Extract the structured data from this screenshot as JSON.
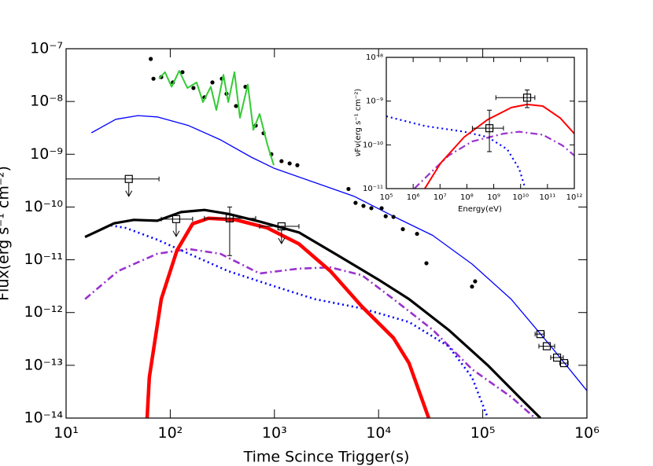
{
  "chart_data": [
    {
      "type": "line",
      "xlabel": "Time Scince Trigger(s)",
      "ylabel": "Flux(erg s⁻¹ cm⁻²)",
      "log_x": true,
      "log_y": true,
      "xlim": [
        10,
        1000000
      ],
      "ylim": [
        1e-14,
        1e-07
      ],
      "xticks": [
        {
          "value": 10,
          "label": "10¹"
        },
        {
          "value": 100,
          "label": "10²"
        },
        {
          "value": 1000,
          "label": "10³"
        },
        {
          "value": 10000,
          "label": "10⁴"
        },
        {
          "value": 100000,
          "label": "10⁵"
        },
        {
          "value": 1000000,
          "label": "10⁶"
        }
      ],
      "yticks": [
        {
          "value": 1e-14,
          "label": "10⁻¹⁴"
        },
        {
          "value": 1e-13,
          "label": "10⁻¹³"
        },
        {
          "value": 1e-12,
          "label": "10⁻¹²"
        },
        {
          "value": 1e-11,
          "label": "10⁻¹¹"
        },
        {
          "value": 1e-10,
          "label": "10⁻¹⁰"
        },
        {
          "value": 1e-09,
          "label": "10⁻⁹"
        },
        {
          "value": 1e-08,
          "label": "10⁻⁸"
        },
        {
          "value": 1e-07,
          "label": "10⁻⁷"
        }
      ],
      "series": [
        {
          "kind": "line",
          "style": "solid",
          "width": 1.3,
          "color": "#0000ff",
          "x": [
            17.5,
            30,
            49,
            75,
            150,
            300,
            600,
            1000,
            5800,
            13800,
            33000,
            79000,
            187000,
            450000,
            1000000
          ],
          "values": [
            2.55e-09,
            4.6e-09,
            5.4e-09,
            5.1e-09,
            3.5e-09,
            1.9e-09,
            8.8e-10,
            5.4e-10,
            1.6e-10,
            6.7e-11,
            2.9e-11,
            8.3e-12,
            1.8e-12,
            2.3e-13,
            3.3e-14
          ]
        },
        {
          "kind": "line",
          "style": "dashdot",
          "width": 2.6,
          "color": "#9933cc",
          "x": [
            15.2,
            31.5,
            75,
            151,
            302,
            721,
            1720,
            3450,
            6920,
            13900,
            33100,
            78900,
            188000,
            318000
          ],
          "values": [
            1.8e-12,
            6.1e-12,
            1.3e-11,
            1.6e-11,
            1.3e-11,
            5.5e-12,
            6.8e-12,
            7.2e-12,
            5.1e-12,
            1.8e-12,
            4.7e-13,
            8.4e-14,
            2.5e-14,
            1e-14
          ]
        },
        {
          "kind": "line",
          "style": "dotted",
          "width": 2.6,
          "color": "#0000ff",
          "x": [
            15.2,
            26.5,
            37.5,
            75,
            151,
            360,
            1020,
            2440,
            6920,
            19600,
            46900,
            78900,
            112000
          ],
          "values": [
            2.7e-11,
            4.5e-11,
            4e-11,
            2.4e-11,
            1.3e-11,
            6.1e-12,
            3.1e-12,
            1.8e-12,
            1.2e-12,
            6.6e-13,
            2.3e-13,
            5.9e-14,
            1e-14
          ]
        },
        {
          "kind": "line",
          "style": "solid",
          "width": 3.2,
          "color": "#000000",
          "x": [
            15.2,
            28.9,
            44.7,
            75,
            127,
            213,
            360,
            721,
            1720,
            4100,
            9800,
            19600,
            46900,
            112000,
            224000,
            358000
          ],
          "values": [
            2.7e-11,
            4.9e-11,
            5.7e-11,
            5.5e-11,
            8e-11,
            8.8e-11,
            7.4e-11,
            5.3e-11,
            3.3e-11,
            1.2e-11,
            4.3e-12,
            1.8e-12,
            4.7e-13,
            1e-13,
            2.5e-14,
            1e-14
          ]
        },
        {
          "kind": "line",
          "style": "solid",
          "width": 4.5,
          "color": "#ff0000",
          "x": [
            60,
            63,
            82,
            116,
            164,
            233,
            428,
            858,
            1720,
            3450,
            6920,
            13900,
            19600,
            30300
          ],
          "values": [
            1e-14,
            5.9e-14,
            1.8e-12,
            1.5e-11,
            4.8e-11,
            6.1e-11,
            5.7e-11,
            4e-11,
            2e-11,
            6.1e-12,
            1.3e-12,
            3.3e-13,
            1.1e-13,
            1e-14
          ]
        },
        {
          "kind": "scatter",
          "marker": "dot",
          "color": "#000000",
          "x": [
            65,
            69,
            82,
            106,
            131,
            167,
            213,
            254,
            313,
            347,
            428,
            527,
            661,
            787,
            935,
            1170,
            1400,
            1660,
            5140,
            6010,
            7160,
            8520,
            10700,
            11700,
            13900,
            17100,
            23400,
            28800,
            78900,
            84500
          ],
          "values": [
            6.4e-08,
            2.7e-08,
            2.9e-08,
            2.3e-08,
            3.6e-08,
            1.8e-08,
            1.2e-08,
            2.3e-08,
            2.7e-08,
            1.4e-08,
            8.2e-09,
            1.9e-08,
            3.5e-09,
            2.5e-09,
            1e-09,
            7.4e-10,
            6.7e-10,
            6.2e-10,
            2.2e-10,
            1.2e-10,
            1.05e-10,
            9.5e-11,
            9.5e-11,
            6.7e-11,
            6.5e-11,
            3.8e-11,
            3.1e-11,
            8.6e-12,
            3.1e-12,
            3.9e-12
          ]
        },
        {
          "kind": "line",
          "style": "solid",
          "width": 2,
          "color": "#33cc33",
          "x": [
            78,
            89,
            103,
            122,
            146,
            179,
            206,
            245,
            277,
            324,
            360,
            413,
            467,
            556,
            628,
            721,
            858,
            986
          ],
          "values": [
            2.7e-08,
            3.6e-08,
            1.9e-08,
            3.8e-08,
            1.8e-08,
            2.3e-08,
            9.7e-09,
            1.9e-08,
            6.9e-09,
            3.2e-08,
            9.7e-09,
            3.6e-08,
            4.9e-09,
            2.1e-08,
            2.9e-09,
            5.8e-09,
            1.5e-09,
            6.2e-10
          ]
        },
        {
          "kind": "errorbar",
          "marker": "square",
          "color": "#000000",
          "x": [
            40,
            114,
            372,
            1170,
            358000,
            412000,
            517000,
            604000
          ],
          "values": [
            3.4e-10,
            5.9e-11,
            6.1e-11,
            4.3e-11,
            3.9e-13,
            2.3e-13,
            1.4e-13,
            1.1e-13
          ],
          "x_low": [
            10,
            82,
            213,
            721,
            318000,
            346000,
            449000,
            550000
          ],
          "x_high": [
            78,
            164,
            661,
            1720,
            390000,
            490000,
            593000,
            660000
          ],
          "y_low": [
            null,
            null,
            1.2e-11,
            null,
            null,
            null,
            null,
            null
          ],
          "y_high": [
            null,
            null,
            1e-10,
            null,
            null,
            null,
            null,
            null
          ],
          "upper_limit": [
            true,
            true,
            false,
            true,
            false,
            false,
            false,
            false
          ]
        }
      ]
    },
    {
      "type": "line",
      "xlabel": "Energy(eV)",
      "ylabel": "νFν(erg s⁻¹ cm⁻²)",
      "log_x": true,
      "log_y": true,
      "xlim": [
        100000,
        1000000000000
      ],
      "ylim": [
        1e-11,
        1e-08
      ],
      "xticks": [
        {
          "value": 100000,
          "label": "10⁵"
        },
        {
          "value": 1000000,
          "label": "10⁶"
        },
        {
          "value": 10000000,
          "label": "10⁷"
        },
        {
          "value": 100000000,
          "label": "10⁸"
        },
        {
          "value": 1000000000,
          "label": "10⁹"
        },
        {
          "value": 10000000000,
          "label": "10¹⁰"
        },
        {
          "value": 100000000000,
          "label": "10¹¹"
        },
        {
          "value": 1000000000000,
          "label": "10¹²"
        }
      ],
      "yticks": [
        {
          "value": 1e-11,
          "label": "10⁻¹¹"
        },
        {
          "value": 1e-10,
          "label": "10⁻¹⁰"
        },
        {
          "value": 1e-09,
          "label": "10⁻⁹"
        },
        {
          "value": 1e-08,
          "label": "10⁻⁸"
        }
      ],
      "series": [
        {
          "kind": "line",
          "style": "dotted",
          "width": 2.2,
          "color": "#0000ff",
          "x": [
            100000,
            2700000,
            79000000,
            600000000,
            3200000000,
            8900000000,
            15000000000
          ],
          "values": [
            4.5e-10,
            2.7e-10,
            2e-10,
            1.5e-10,
            7.9e-11,
            2.8e-11,
            1e-11
          ]
        },
        {
          "kind": "line",
          "style": "dashdot",
          "width": 2.2,
          "color": "#9933cc",
          "x": [
            1100000,
            3800000,
            21000000,
            160000000,
            2300000000,
            8900000000,
            67000000000,
            360000000000,
            1000000000000
          ],
          "values": [
            1e-11,
            2.1e-11,
            5.7e-11,
            1.2e-10,
            1.8e-10,
            2e-10,
            1.7e-10,
            9.7e-11,
            5.7e-11
          ]
        },
        {
          "kind": "line",
          "style": "solid",
          "width": 2,
          "color": "#ff0000",
          "x": [
            2700000,
            10500000,
            79000000,
            600000000,
            4500000000,
            17500000000,
            67000000000,
            300000000000,
            1000000000000
          ],
          "values": [
            1e-11,
            3.8e-11,
            1.5e-10,
            3.8e-10,
            7.1e-10,
            8.4e-10,
            7.7e-10,
            4.1e-10,
            1.8e-10
          ]
        },
        {
          "kind": "errorbar",
          "marker": "square",
          "color": "#000000",
          "x": [
            690000000,
            17500000000
          ],
          "values": [
            2.4e-10,
            1.2e-09
          ],
          "x_low": [
            160000000,
            1200000000
          ],
          "x_high": [
            2300000000,
            34000000000
          ],
          "y_low": [
            7e-11,
            7.1e-10
          ],
          "y_high": [
            6.2e-10,
            1.8e-09
          ],
          "upper_limit": [
            false,
            false
          ]
        }
      ]
    }
  ]
}
